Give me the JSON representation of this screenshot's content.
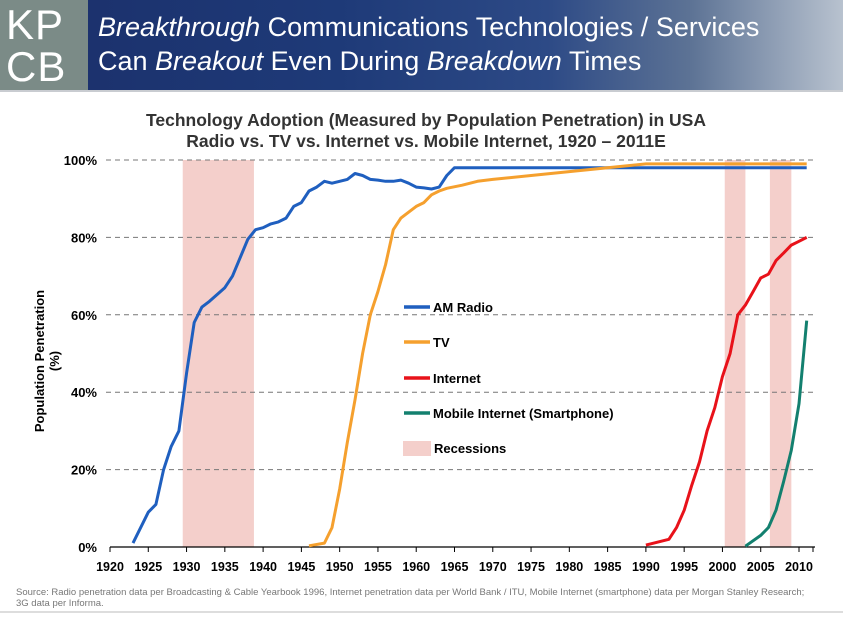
{
  "header": {
    "logo_line1": "KP",
    "logo_line2": "CB",
    "title_line1_italic": "Breakthrough",
    "title_line1_rest": " Communications Technologies / Services",
    "title_line2_a": "Can ",
    "title_line2_b_italic": "Breakout",
    "title_line2_c": " Even During ",
    "title_line2_d_italic": "Breakdown",
    "title_line2_e": " Times"
  },
  "source": "Source: Radio penetration data per Broadcasting & Cable Yearbook 1996, Internet penetration data per World Bank / ITU, Mobile Internet (smartphone) data per Morgan Stanley Research; 3G data per Informa.",
  "colors": {
    "am_radio": "#1f5fbf",
    "tv": "#f5a02e",
    "internet": "#e8121a",
    "mobile": "#13806f",
    "recession": "#f4cfcb"
  },
  "chart_data": {
    "type": "line",
    "title": "Technology Adoption (Measured by Population Penetration) in USA",
    "subtitle": "Radio vs. TV vs. Internet vs. Mobile Internet, 1920 – 2011E",
    "xlabel": "",
    "ylabel": "Population Penetration (%)",
    "xlim": [
      1920,
      2012
    ],
    "ylim": [
      0,
      100
    ],
    "x_ticks": [
      1920,
      1925,
      1930,
      1935,
      1940,
      1945,
      1950,
      1955,
      1960,
      1965,
      1970,
      1975,
      1980,
      1985,
      1990,
      1995,
      2000,
      2005,
      2010
    ],
    "y_ticks": [
      "0%",
      "20%",
      "40%",
      "60%",
      "80%",
      "100%"
    ],
    "y_tick_values": [
      0,
      20,
      40,
      60,
      80,
      100
    ],
    "grid": "horizontal-dashed",
    "legend_position": "center",
    "legend": [
      "AM Radio",
      "TV",
      "Internet",
      "Mobile Internet (Smartphone)",
      "Recessions"
    ],
    "recessions": [
      [
        1929.5,
        1938.8
      ],
      [
        2000.3,
        2003.0
      ],
      [
        2006.2,
        2009.0
      ]
    ],
    "series": [
      {
        "name": "AM Radio",
        "key": "am_radio",
        "points": [
          [
            1923,
            1
          ],
          [
            1925,
            9
          ],
          [
            1926,
            11
          ],
          [
            1927,
            20
          ],
          [
            1928,
            26
          ],
          [
            1929,
            30
          ],
          [
            1930,
            45
          ],
          [
            1931,
            58
          ],
          [
            1932,
            62
          ],
          [
            1933,
            63.5
          ],
          [
            1935,
            67
          ],
          [
            1936,
            70
          ],
          [
            1938,
            79.5
          ],
          [
            1939,
            82
          ],
          [
            1940,
            82.5
          ],
          [
            1941,
            83.5
          ],
          [
            1942,
            84
          ],
          [
            1943,
            85
          ],
          [
            1944,
            88
          ],
          [
            1945,
            89
          ],
          [
            1946,
            92
          ],
          [
            1947,
            93
          ],
          [
            1948,
            94.5
          ],
          [
            1949,
            94
          ],
          [
            1950,
            94.5
          ],
          [
            1951,
            95
          ],
          [
            1952,
            96.5
          ],
          [
            1953,
            96
          ],
          [
            1954,
            95
          ],
          [
            1955,
            94.8
          ],
          [
            1956,
            94.5
          ],
          [
            1957,
            94.5
          ],
          [
            1958,
            94.8
          ],
          [
            1959,
            94
          ],
          [
            1960,
            93
          ],
          [
            1961,
            92.8
          ],
          [
            1962,
            92.5
          ],
          [
            1963,
            93
          ],
          [
            1964,
            96
          ],
          [
            1965,
            98
          ],
          [
            2011,
            98
          ]
        ]
      },
      {
        "name": "TV",
        "key": "tv",
        "points": [
          [
            1946,
            0.3
          ],
          [
            1948,
            1
          ],
          [
            1949,
            5
          ],
          [
            1950,
            15
          ],
          [
            1951,
            27
          ],
          [
            1952,
            38
          ],
          [
            1953,
            50
          ],
          [
            1954,
            60
          ],
          [
            1955,
            66
          ],
          [
            1956,
            73
          ],
          [
            1957,
            82
          ],
          [
            1958,
            85
          ],
          [
            1959,
            86.5
          ],
          [
            1960,
            88
          ],
          [
            1961,
            89
          ],
          [
            1962,
            91
          ],
          [
            1963,
            92
          ],
          [
            1964,
            92.7
          ],
          [
            1966,
            93.5
          ],
          [
            1968,
            94.5
          ],
          [
            1970,
            95
          ],
          [
            1975,
            96
          ],
          [
            1980,
            97
          ],
          [
            1985,
            98
          ],
          [
            1990,
            99
          ],
          [
            2011,
            99
          ]
        ]
      },
      {
        "name": "Internet",
        "key": "internet",
        "points": [
          [
            1990,
            0.5
          ],
          [
            1993,
            2
          ],
          [
            1994,
            5
          ],
          [
            1995,
            9.5
          ],
          [
            1996,
            16
          ],
          [
            1997,
            22
          ],
          [
            1998,
            30
          ],
          [
            1999,
            36
          ],
          [
            2000,
            44
          ],
          [
            2001,
            50
          ],
          [
            2002,
            60
          ],
          [
            2003,
            62.5
          ],
          [
            2004,
            66
          ],
          [
            2005,
            69.5
          ],
          [
            2006,
            70.5
          ],
          [
            2007,
            74
          ],
          [
            2008,
            76
          ],
          [
            2009,
            78
          ],
          [
            2010,
            79
          ],
          [
            2011,
            80
          ]
        ]
      },
      {
        "name": "Mobile Internet (Smartphone)",
        "key": "mobile",
        "points": [
          [
            2003,
            0.2
          ],
          [
            2005,
            3
          ],
          [
            2006,
            5
          ],
          [
            2007,
            9.5
          ],
          [
            2008,
            17
          ],
          [
            2009,
            25
          ],
          [
            2010,
            37
          ],
          [
            2011,
            58.5
          ]
        ]
      }
    ]
  }
}
